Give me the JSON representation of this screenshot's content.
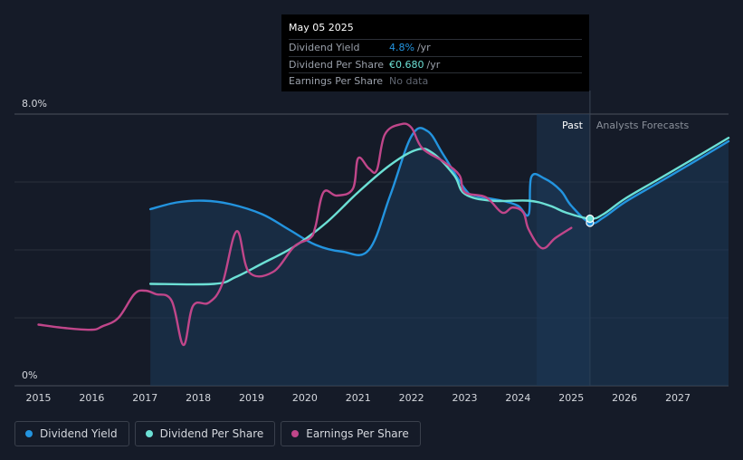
{
  "tooltip": {
    "date": "May 05 2025",
    "rows": [
      {
        "label": "Dividend Yield",
        "value": "4.8%",
        "unit": "/yr"
      },
      {
        "label": "Dividend Per Share",
        "value": "€0.680",
        "unit": "/yr"
      },
      {
        "label": "Earnings Per Share",
        "value": "No data",
        "unit": ""
      }
    ]
  },
  "legend": [
    {
      "label": "Dividend Yield",
      "color": "#2394df"
    },
    {
      "label": "Dividend Per Share",
      "color": "#6ce0d5"
    },
    {
      "label": "Earnings Per Share",
      "color": "#c0468a"
    }
  ],
  "chart_data": {
    "type": "line",
    "y_axis": {
      "ticks": [
        "8.0%",
        "0%"
      ],
      "ylim": [
        0,
        8.0
      ],
      "unit": "%"
    },
    "x_axis": {
      "ticks": [
        "2015",
        "2016",
        "2017",
        "2018",
        "2019",
        "2020",
        "2021",
        "2022",
        "2023",
        "2024",
        "2025",
        "2026",
        "2027"
      ],
      "xlim": [
        2014.55,
        2027.95
      ]
    },
    "regions": {
      "past_label": "Past",
      "forecast_label": "Analysts Forecasts",
      "past_start": 2024.35,
      "past_end": 2025.35
    },
    "grid": true,
    "series": [
      {
        "name": "Dividend Yield",
        "color": "#2394df",
        "area": true,
        "points": [
          [
            2017.1,
            5.2
          ],
          [
            2017.6,
            5.4
          ],
          [
            2018.1,
            5.45
          ],
          [
            2018.6,
            5.35
          ],
          [
            2019.2,
            5.05
          ],
          [
            2019.7,
            4.6
          ],
          [
            2020.2,
            4.15
          ],
          [
            2020.7,
            3.95
          ],
          [
            2021.2,
            4.0
          ],
          [
            2021.6,
            5.6
          ],
          [
            2022.0,
            7.35
          ],
          [
            2022.3,
            7.5
          ],
          [
            2022.6,
            6.8
          ],
          [
            2023.0,
            5.8
          ],
          [
            2023.2,
            5.6
          ],
          [
            2023.7,
            5.45
          ],
          [
            2024.0,
            5.3
          ],
          [
            2024.2,
            5.05
          ],
          [
            2024.25,
            6.15
          ],
          [
            2024.5,
            6.1
          ],
          [
            2024.8,
            5.75
          ],
          [
            2025.0,
            5.3
          ],
          [
            2025.35,
            4.8
          ],
          [
            2025.6,
            4.95
          ],
          [
            2026.0,
            5.4
          ],
          [
            2026.6,
            5.95
          ],
          [
            2027.2,
            6.5
          ],
          [
            2027.95,
            7.2
          ]
        ]
      },
      {
        "name": "Dividend Per Share",
        "color": "#6ce0d5",
        "area": false,
        "points": [
          [
            2017.1,
            3.0
          ],
          [
            2018.3,
            3.0
          ],
          [
            2018.7,
            3.2
          ],
          [
            2019.2,
            3.6
          ],
          [
            2019.8,
            4.1
          ],
          [
            2020.4,
            4.8
          ],
          [
            2021.0,
            5.7
          ],
          [
            2021.6,
            6.5
          ],
          [
            2022.1,
            6.95
          ],
          [
            2022.4,
            6.85
          ],
          [
            2022.8,
            6.2
          ],
          [
            2023.0,
            5.65
          ],
          [
            2023.5,
            5.45
          ],
          [
            2024.2,
            5.45
          ],
          [
            2024.6,
            5.3
          ],
          [
            2024.9,
            5.1
          ],
          [
            2025.35,
            4.92
          ],
          [
            2025.6,
            5.05
          ],
          [
            2026.0,
            5.5
          ],
          [
            2026.6,
            6.05
          ],
          [
            2027.2,
            6.6
          ],
          [
            2027.95,
            7.3
          ]
        ]
      },
      {
        "name": "Earnings Per Share",
        "color": "#c0468a",
        "area": false,
        "points": [
          [
            2015.0,
            1.8
          ],
          [
            2015.5,
            1.7
          ],
          [
            2016.0,
            1.65
          ],
          [
            2016.2,
            1.75
          ],
          [
            2016.5,
            2.0
          ],
          [
            2016.8,
            2.7
          ],
          [
            2017.0,
            2.8
          ],
          [
            2017.2,
            2.7
          ],
          [
            2017.5,
            2.5
          ],
          [
            2017.72,
            1.2
          ],
          [
            2017.9,
            2.35
          ],
          [
            2018.2,
            2.45
          ],
          [
            2018.45,
            3.0
          ],
          [
            2018.72,
            4.55
          ],
          [
            2018.95,
            3.35
          ],
          [
            2019.4,
            3.35
          ],
          [
            2019.8,
            4.1
          ],
          [
            2020.1,
            4.35
          ],
          [
            2020.2,
            4.7
          ],
          [
            2020.35,
            5.7
          ],
          [
            2020.6,
            5.6
          ],
          [
            2020.9,
            5.8
          ],
          [
            2021.0,
            6.7
          ],
          [
            2021.2,
            6.4
          ],
          [
            2021.35,
            6.35
          ],
          [
            2021.5,
            7.4
          ],
          [
            2021.8,
            7.7
          ],
          [
            2022.0,
            7.6
          ],
          [
            2022.2,
            7.0
          ],
          [
            2022.6,
            6.6
          ],
          [
            2022.9,
            6.2
          ],
          [
            2023.0,
            5.7
          ],
          [
            2023.4,
            5.55
          ],
          [
            2023.7,
            5.1
          ],
          [
            2023.9,
            5.25
          ],
          [
            2024.1,
            5.1
          ],
          [
            2024.2,
            4.6
          ],
          [
            2024.45,
            4.05
          ],
          [
            2024.7,
            4.35
          ],
          [
            2025.0,
            4.65
          ]
        ]
      }
    ],
    "markers": [
      {
        "series": "Dividend Yield",
        "x": 2025.35,
        "y": 4.8
      },
      {
        "series": "Dividend Per Share",
        "x": 2025.35,
        "y": 4.92
      }
    ]
  }
}
